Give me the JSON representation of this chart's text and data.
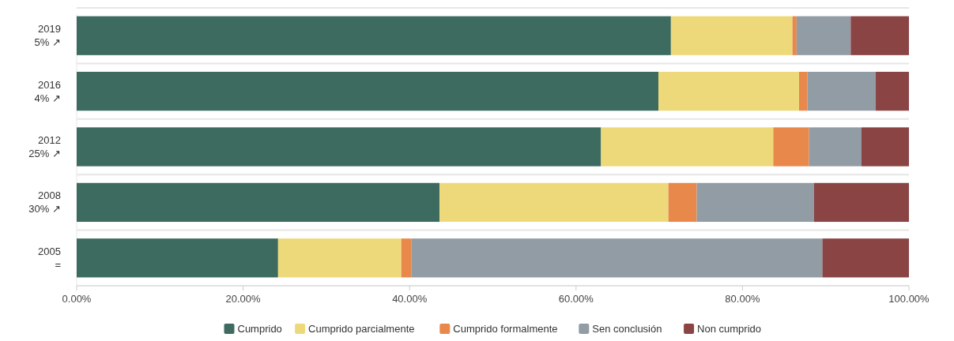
{
  "chart_data": {
    "type": "bar",
    "orientation": "horizontal",
    "stacked": true,
    "categories": [
      "2019\n5% ↗",
      "2016\n4% ↗",
      "2012\n25% ↗",
      "2008\n30% ↗",
      "2005\n="
    ],
    "series": [
      {
        "name": "Cumprido",
        "color": "#3d6b5f",
        "values": [
          71.4,
          69.9,
          63.0,
          43.6,
          24.2
        ]
      },
      {
        "name": "Cumprido parcialmente",
        "color": "#eed97a",
        "values": [
          14.6,
          16.9,
          20.7,
          27.5,
          14.8
        ]
      },
      {
        "name": "Cumprido formalmente",
        "color": "#e9884b",
        "values": [
          0.5,
          1.0,
          4.3,
          3.4,
          1.2
        ]
      },
      {
        "name": "Sen conclusión",
        "color": "#929ca5",
        "values": [
          6.5,
          8.2,
          6.3,
          14.1,
          49.4
        ]
      },
      {
        "name": "Non cumprido",
        "color": "#8a4444",
        "values": [
          7.0,
          4.0,
          5.7,
          11.4,
          10.4
        ]
      }
    ],
    "xlim": [
      0,
      100
    ],
    "xticks": [
      {
        "value": 0,
        "label": "0.00%"
      },
      {
        "value": 20,
        "label": "20.00%"
      },
      {
        "value": 40,
        "label": "40.00%"
      },
      {
        "value": 60,
        "label": "60.00%"
      },
      {
        "value": 80,
        "label": "80.00%"
      },
      {
        "value": 100,
        "label": "100.00%"
      }
    ],
    "grid": "y",
    "legend": "bottom"
  }
}
